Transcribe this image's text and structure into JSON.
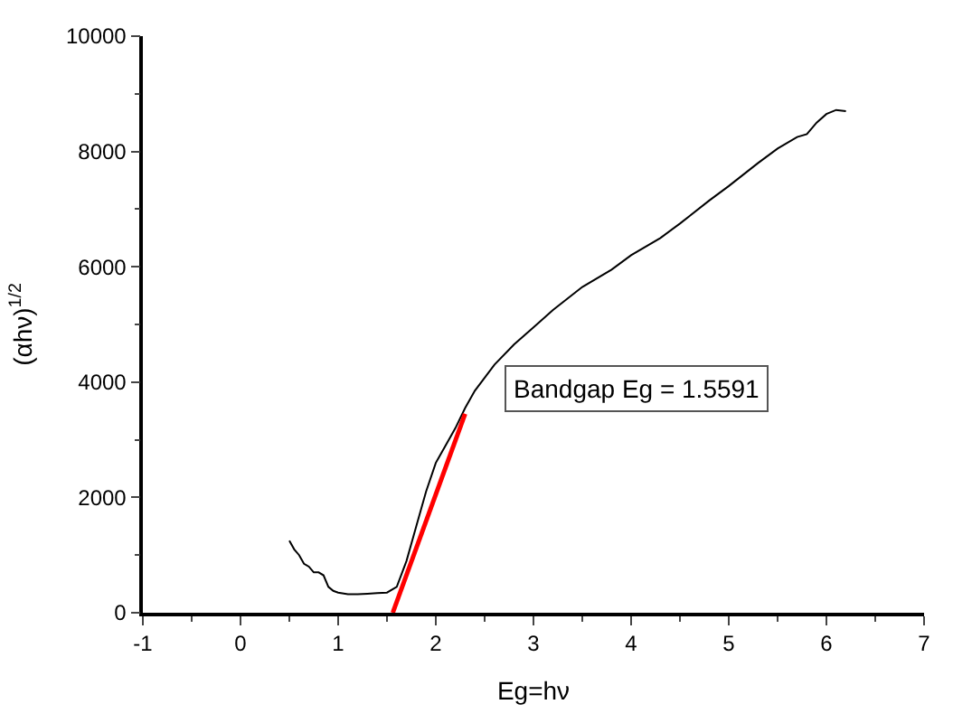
{
  "chart_data": {
    "type": "line",
    "xlabel": "Eg=hν",
    "ylabel": "(αhν)$^{1/2}$",
    "xlim": [
      -1,
      7
    ],
    "xticks": [
      -1,
      0,
      1,
      2,
      3,
      4,
      5,
      6,
      7
    ],
    "ylim": [
      0,
      10000
    ],
    "yticks": [
      0,
      2000,
      4000,
      6000,
      8000,
      10000
    ],
    "marker": "none",
    "line_style": "solid",
    "annotations": [
      "Bandgap Eg = 1.5591"
    ],
    "series": [
      {
        "color": "#000000",
        "x": [
          0.5,
          0.55,
          0.6,
          0.65,
          0.7,
          0.75,
          0.8,
          0.85,
          0.9,
          0.95,
          1.0,
          1.1,
          1.2,
          1.3,
          1.4,
          1.5,
          1.6,
          1.7,
          1.8,
          1.9,
          2.0,
          2.1,
          2.2,
          2.3,
          2.4,
          2.6,
          2.8,
          3.0,
          3.2,
          3.5,
          3.8,
          4.0,
          4.3,
          4.5,
          4.8,
          5.0,
          5.3,
          5.5,
          5.7,
          5.8,
          5.9,
          6.0,
          6.1,
          6.2
        ],
        "values": [
          1250,
          1100,
          1000,
          850,
          800,
          700,
          700,
          650,
          450,
          380,
          350,
          320,
          320,
          330,
          340,
          350,
          450,
          900,
          1500,
          2100,
          2600,
          2900,
          3200,
          3550,
          3850,
          4300,
          4650,
          4950,
          5250,
          5650,
          5950,
          6200,
          6500,
          6750,
          7150,
          7400,
          7800,
          8050,
          8250,
          8300,
          8500,
          8650,
          8720,
          8700
        ]
      },
      {
        "color": "#ff0000",
        "x": [
          1.5591,
          2.3
        ],
        "values": [
          0,
          3450
        ]
      }
    ]
  }
}
